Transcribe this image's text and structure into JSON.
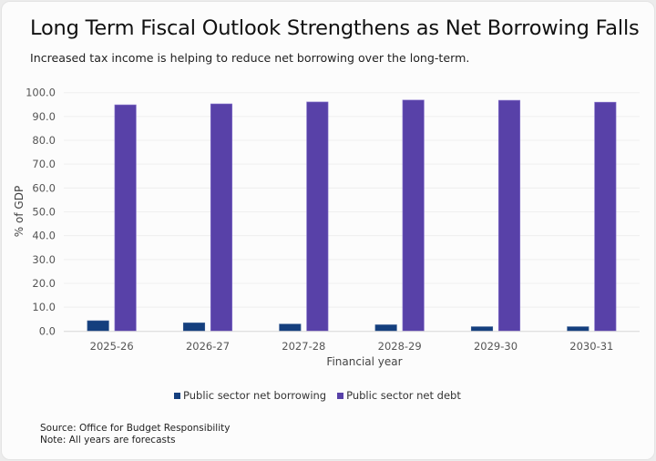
{
  "header": {
    "title": "Long Term Fiscal Outlook Strengthens as Net Borrowing Falls",
    "subtitle": "Increased tax income is helping to reduce net borrowing over the long-term."
  },
  "footer": {
    "source": "Source: Office for Budget Responsibility",
    "note": "Note: All years are forecasts"
  },
  "chart_data": {
    "type": "bar",
    "title": "Long Term Fiscal Outlook Strengthens as Net Borrowing Falls",
    "subtitle": "Increased tax income is helping to reduce net borrowing over the long-term.",
    "xlabel": "Financial year",
    "ylabel": "% of GDP",
    "ylim": [
      0,
      100
    ],
    "yticks": [
      "0.0",
      "10.0",
      "20.0",
      "30.0",
      "40.0",
      "50.0",
      "60.0",
      "70.0",
      "80.0",
      "90.0",
      "100.0"
    ],
    "ytick_values": [
      0,
      10,
      20,
      30,
      40,
      50,
      60,
      70,
      80,
      90,
      100
    ],
    "grid": true,
    "legend_position": "bottom",
    "categories": [
      "2025-26",
      "2026-27",
      "2027-28",
      "2028-29",
      "2029-30",
      "2030-31"
    ],
    "series": [
      {
        "name": "Public sector net borrowing",
        "color": "#143f7e",
        "values": [
          4.3,
          3.4,
          2.9,
          2.6,
          1.8,
          1.8
        ]
      },
      {
        "name": "Public sector net debt",
        "color": "#5841a8",
        "values": [
          94.9,
          95.3,
          96.1,
          96.9,
          96.8,
          96.0
        ]
      }
    ]
  }
}
